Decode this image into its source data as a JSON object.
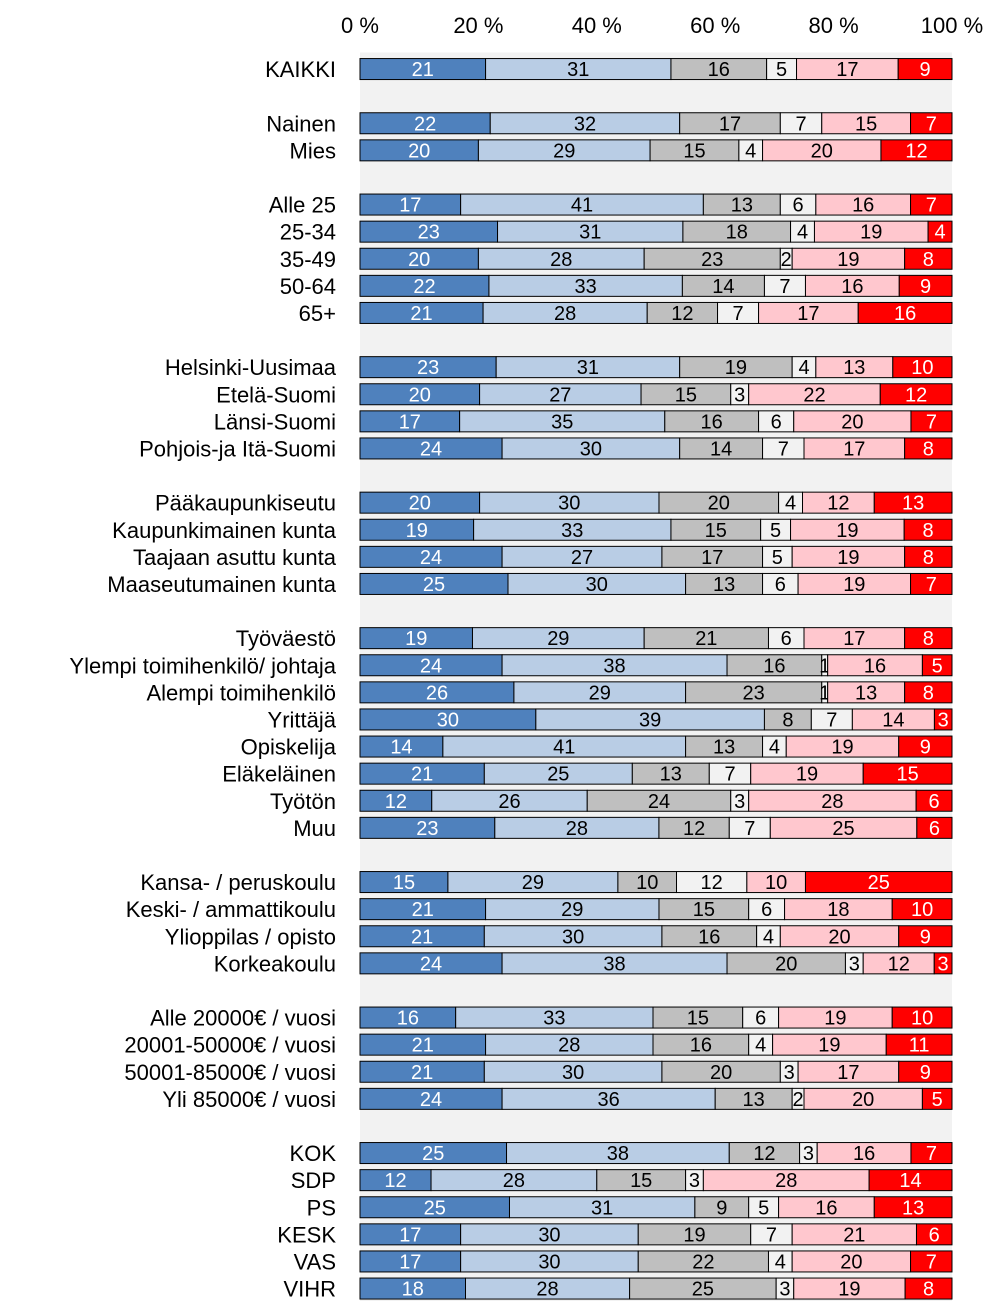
{
  "chart_data": {
    "type": "bar",
    "orientation": "horizontal",
    "stacked": "percent",
    "xlim": [
      0,
      100
    ],
    "x_ticks": [
      "0 %",
      "20 %",
      "40 %",
      "60 %",
      "80 %",
      "100 %"
    ],
    "series_colors": [
      "#4f81bd",
      "#b9cde5",
      "#bfbfbf",
      "#f2f2f2",
      "#ffc7ce",
      "#ff0000"
    ],
    "label_colors": [
      "#ffffff",
      "#000000",
      "#000000",
      "#000000",
      "#000000",
      "#ffffff"
    ],
    "band_color": "#f2f2f2",
    "groups": [
      {
        "rows": [
          {
            "label": "KAIKKI",
            "values": [
              21,
              31,
              16,
              5,
              17,
              9
            ]
          }
        ]
      },
      {
        "rows": [
          {
            "label": "Nainen",
            "values": [
              22,
              32,
              17,
              7,
              15,
              7
            ]
          },
          {
            "label": "Mies",
            "values": [
              20,
              29,
              15,
              4,
              20,
              12
            ]
          }
        ]
      },
      {
        "rows": [
          {
            "label": "Alle 25",
            "values": [
              17,
              41,
              13,
              6,
              16,
              7
            ]
          },
          {
            "label": "25-34",
            "values": [
              23,
              31,
              18,
              4,
              19,
              4
            ]
          },
          {
            "label": "35-49",
            "values": [
              20,
              28,
              23,
              2,
              19,
              8
            ]
          },
          {
            "label": "50-64",
            "values": [
              22,
              33,
              14,
              7,
              16,
              9
            ]
          },
          {
            "label": "65+",
            "values": [
              21,
              28,
              12,
              7,
              17,
              16
            ]
          }
        ]
      },
      {
        "rows": [
          {
            "label": "Helsinki-Uusimaa",
            "values": [
              23,
              31,
              19,
              4,
              13,
              10
            ]
          },
          {
            "label": "Etelä-Suomi",
            "values": [
              20,
              27,
              15,
              3,
              22,
              12
            ]
          },
          {
            "label": "Länsi-Suomi",
            "values": [
              17,
              35,
              16,
              6,
              20,
              7
            ]
          },
          {
            "label": "Pohjois-ja Itä-Suomi",
            "values": [
              24,
              30,
              14,
              7,
              17,
              8
            ]
          }
        ]
      },
      {
        "rows": [
          {
            "label": "Pääkaupunkiseutu",
            "values": [
              20,
              30,
              20,
              4,
              12,
              13
            ]
          },
          {
            "label": "Kaupunkimainen kunta",
            "values": [
              19,
              33,
              15,
              5,
              19,
              8
            ]
          },
          {
            "label": "Taajaan asuttu kunta",
            "values": [
              24,
              27,
              17,
              5,
              19,
              8
            ]
          },
          {
            "label": "Maaseutumainen kunta",
            "values": [
              25,
              30,
              13,
              6,
              19,
              7
            ]
          }
        ]
      },
      {
        "rows": [
          {
            "label": "Työväestö",
            "values": [
              19,
              29,
              21,
              6,
              17,
              8
            ]
          },
          {
            "label": "Ylempi toimihenkilö/ johtaja",
            "values": [
              24,
              38,
              16,
              1,
              16,
              5
            ]
          },
          {
            "label": "Alempi toimihenkilö",
            "values": [
              26,
              29,
              23,
              1,
              13,
              8
            ]
          },
          {
            "label": "Yrittäjä",
            "values": [
              30,
              39,
              8,
              7,
              14,
              3
            ]
          },
          {
            "label": "Opiskelija",
            "values": [
              14,
              41,
              13,
              4,
              19,
              9
            ]
          },
          {
            "label": "Eläkeläinen",
            "values": [
              21,
              25,
              13,
              7,
              19,
              15
            ]
          },
          {
            "label": "Työtön",
            "values": [
              12,
              26,
              24,
              3,
              28,
              6
            ]
          },
          {
            "label": "Muu",
            "values": [
              23,
              28,
              12,
              7,
              25,
              6
            ]
          }
        ]
      },
      {
        "rows": [
          {
            "label": "Kansa- / peruskoulu",
            "values": [
              15,
              29,
              10,
              12,
              10,
              25
            ]
          },
          {
            "label": "Keski- / ammattikoulu",
            "values": [
              21,
              29,
              15,
              6,
              18,
              10
            ]
          },
          {
            "label": "Ylioppilas / opisto",
            "values": [
              21,
              30,
              16,
              4,
              20,
              9
            ]
          },
          {
            "label": "Korkeakoulu",
            "values": [
              24,
              38,
              20,
              3,
              12,
              3
            ]
          }
        ]
      },
      {
        "rows": [
          {
            "label": "Alle 20000€ / vuosi",
            "values": [
              16,
              33,
              15,
              6,
              19,
              10
            ]
          },
          {
            "label": "20001-50000€ / vuosi",
            "values": [
              21,
              28,
              16,
              4,
              19,
              11
            ]
          },
          {
            "label": "50001-85000€ / vuosi",
            "values": [
              21,
              30,
              20,
              3,
              17,
              9
            ]
          },
          {
            "label": "Yli 85000€ / vuosi",
            "values": [
              24,
              36,
              13,
              2,
              20,
              5
            ]
          }
        ]
      },
      {
        "rows": [
          {
            "label": "KOK",
            "values": [
              25,
              38,
              12,
              3,
              16,
              7
            ]
          },
          {
            "label": "SDP",
            "values": [
              12,
              28,
              15,
              3,
              28,
              14
            ]
          },
          {
            "label": "PS",
            "values": [
              25,
              31,
              9,
              5,
              16,
              13
            ]
          },
          {
            "label": "KESK",
            "values": [
              17,
              30,
              19,
              7,
              21,
              6
            ]
          },
          {
            "label": "VAS",
            "values": [
              17,
              30,
              22,
              4,
              20,
              7
            ]
          },
          {
            "label": "VIHR",
            "values": [
              18,
              28,
              25,
              3,
              19,
              8
            ]
          }
        ]
      }
    ]
  }
}
